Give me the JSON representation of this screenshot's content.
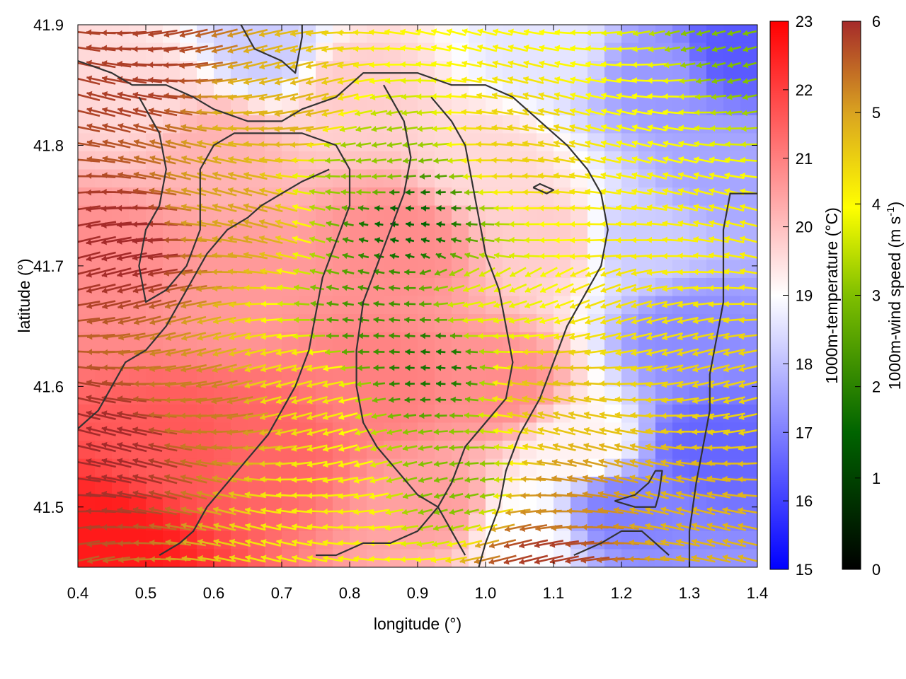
{
  "chart_data": {
    "type": "heatmap",
    "subtype": "temperature field with wind vectors and contour lines",
    "xlabel": "longitude (°)",
    "ylabel": "latitude (°)",
    "xlim": [
      0.4,
      1.4
    ],
    "ylim": [
      41.45,
      41.9
    ],
    "x_ticks": [
      "0.4",
      "0.5",
      "0.6",
      "0.7",
      "0.8",
      "0.9",
      "1.0",
      "1.1",
      "1.2",
      "1.3",
      "1.4"
    ],
    "y_ticks": [
      "41.5",
      "41.6",
      "41.7",
      "41.8",
      "41.9"
    ],
    "grid": false,
    "temperature_colorbar": {
      "label": "1000m-temperature (°C)",
      "range": [
        15,
        23
      ],
      "ticks": [
        "15",
        "16",
        "17",
        "18",
        "19",
        "20",
        "21",
        "22",
        "23"
      ],
      "colors": [
        "#0000ff",
        "#ffffff",
        "#ff0000"
      ]
    },
    "wind_colorbar": {
      "label": "1000m-wind speed (m s",
      "label_superscript": "-1",
      "label_close": ")",
      "range": [
        0,
        6
      ],
      "ticks": [
        "0",
        "1",
        "2",
        "3",
        "4",
        "5",
        "6"
      ],
      "colors": [
        "#000000",
        "#006400",
        "#7fbf00",
        "#ffff00",
        "#daa520",
        "#a52a2a"
      ]
    },
    "temperature_anchors": [
      {
        "lon": 0.45,
        "lat": 41.47,
        "t": 22.6
      },
      {
        "lon": 0.55,
        "lat": 41.55,
        "t": 21.6
      },
      {
        "lon": 0.68,
        "lat": 41.55,
        "t": 21.4
      },
      {
        "lon": 0.62,
        "lat": 41.68,
        "t": 20.6
      },
      {
        "lon": 0.6,
        "lat": 41.8,
        "t": 20.2
      },
      {
        "lon": 0.45,
        "lat": 41.7,
        "t": 20.8
      },
      {
        "lon": 0.5,
        "lat": 41.84,
        "t": 19.6
      },
      {
        "lon": 0.68,
        "lat": 41.88,
        "t": 18.2
      },
      {
        "lon": 0.88,
        "lat": 41.72,
        "t": 20.8
      },
      {
        "lon": 0.85,
        "lat": 41.6,
        "t": 21.0
      },
      {
        "lon": 0.93,
        "lat": 41.5,
        "t": 20.5
      },
      {
        "lon": 0.8,
        "lat": 41.85,
        "t": 19.8
      },
      {
        "lon": 1.02,
        "lat": 41.6,
        "t": 20.8
      },
      {
        "lon": 1.0,
        "lat": 41.78,
        "t": 19.6
      },
      {
        "lon": 1.1,
        "lat": 41.72,
        "t": 19.8
      },
      {
        "lon": 1.1,
        "lat": 41.88,
        "t": 18.6
      },
      {
        "lon": 1.14,
        "lat": 41.55,
        "t": 19.2
      },
      {
        "lon": 1.22,
        "lat": 41.72,
        "t": 18.2
      },
      {
        "lon": 1.25,
        "lat": 41.86,
        "t": 17.4
      },
      {
        "lon": 1.2,
        "lat": 41.5,
        "t": 17.0
      },
      {
        "lon": 1.33,
        "lat": 41.55,
        "t": 16.6
      },
      {
        "lon": 1.3,
        "lat": 41.64,
        "t": 17.2
      },
      {
        "lon": 1.35,
        "lat": 41.78,
        "t": 17.6
      },
      {
        "lon": 1.37,
        "lat": 41.88,
        "t": 16.4
      },
      {
        "lon": 1.05,
        "lat": 41.48,
        "t": 19.0
      }
    ],
    "wind_speed_anchors": [
      {
        "lon": 0.45,
        "lat": 41.55,
        "s": 6.0
      },
      {
        "lon": 0.48,
        "lat": 41.72,
        "s": 6.0
      },
      {
        "lon": 0.48,
        "lat": 41.86,
        "s": 5.8
      },
      {
        "lon": 0.6,
        "lat": 41.58,
        "s": 5.2
      },
      {
        "lon": 0.62,
        "lat": 41.74,
        "s": 4.8
      },
      {
        "lon": 0.7,
        "lat": 41.82,
        "s": 4.6
      },
      {
        "lon": 0.72,
        "lat": 41.6,
        "s": 4.0
      },
      {
        "lon": 0.78,
        "lat": 41.5,
        "s": 3.8
      },
      {
        "lon": 0.84,
        "lat": 41.65,
        "s": 1.8
      },
      {
        "lon": 0.88,
        "lat": 41.74,
        "s": 1.2
      },
      {
        "lon": 0.92,
        "lat": 41.62,
        "s": 1.4
      },
      {
        "lon": 0.95,
        "lat": 41.52,
        "s": 2.4
      },
      {
        "lon": 0.82,
        "lat": 41.78,
        "s": 2.6
      },
      {
        "lon": 1.02,
        "lat": 41.66,
        "s": 3.4
      },
      {
        "lon": 1.06,
        "lat": 41.8,
        "s": 4.2
      },
      {
        "lon": 1.1,
        "lat": 41.6,
        "s": 4.4
      },
      {
        "lon": 1.12,
        "lat": 41.5,
        "s": 5.0
      },
      {
        "lon": 1.2,
        "lat": 41.66,
        "s": 4.0
      },
      {
        "lon": 1.22,
        "lat": 41.84,
        "s": 3.6
      },
      {
        "lon": 1.3,
        "lat": 41.72,
        "s": 3.8
      },
      {
        "lon": 1.35,
        "lat": 41.6,
        "s": 4.2
      },
      {
        "lon": 1.36,
        "lat": 41.88,
        "s": 2.4
      },
      {
        "lon": 1.3,
        "lat": 41.5,
        "s": 4.6
      },
      {
        "lon": 1.1,
        "lat": 41.46,
        "s": 5.8
      }
    ],
    "wind_direction": "predominantly westward, converging toward a low-speed core near 0.9°, 41.7°",
    "contour_lines": [
      [
        [
          0.64,
          41.9
        ],
        [
          0.66,
          41.88
        ],
        [
          0.7,
          41.87
        ],
        [
          0.72,
          41.86
        ],
        [
          0.73,
          41.89
        ],
        [
          0.73,
          41.9
        ]
      ],
      [
        [
          0.4,
          41.87
        ],
        [
          0.45,
          41.86
        ],
        [
          0.48,
          41.85
        ],
        [
          0.53,
          41.85
        ],
        [
          0.57,
          41.84
        ],
        [
          0.6,
          41.83
        ],
        [
          0.65,
          41.82
        ],
        [
          0.7,
          41.82
        ],
        [
          0.73,
          41.83
        ],
        [
          0.78,
          41.84
        ],
        [
          0.82,
          41.86
        ],
        [
          0.86,
          41.86
        ],
        [
          0.9,
          41.86
        ],
        [
          0.95,
          41.85
        ],
        [
          1.0,
          41.85
        ],
        [
          1.04,
          41.84
        ],
        [
          1.08,
          41.82
        ],
        [
          1.12,
          41.8
        ],
        [
          1.15,
          41.78
        ],
        [
          1.17,
          41.76
        ],
        [
          1.18,
          41.73
        ],
        [
          1.17,
          41.7
        ],
        [
          1.15,
          41.68
        ],
        [
          1.12,
          41.65
        ],
        [
          1.1,
          41.62
        ],
        [
          1.08,
          41.59
        ],
        [
          1.05,
          41.56
        ],
        [
          1.03,
          41.53
        ],
        [
          1.02,
          41.5
        ],
        [
          1.0,
          41.47
        ],
        [
          0.99,
          41.45
        ]
      ],
      [
        [
          0.49,
          41.84
        ],
        [
          0.52,
          41.81
        ],
        [
          0.53,
          41.78
        ],
        [
          0.52,
          41.75
        ],
        [
          0.5,
          41.73
        ],
        [
          0.49,
          41.7
        ],
        [
          0.5,
          41.67
        ],
        [
          0.53,
          41.68
        ],
        [
          0.56,
          41.7
        ],
        [
          0.58,
          41.73
        ],
        [
          0.58,
          41.78
        ],
        [
          0.6,
          41.8
        ],
        [
          0.63,
          41.81
        ],
        [
          0.68,
          41.81
        ],
        [
          0.73,
          41.81
        ],
        [
          0.78,
          41.8
        ],
        [
          0.8,
          41.78
        ],
        [
          0.8,
          41.75
        ],
        [
          0.78,
          41.72
        ],
        [
          0.76,
          41.69
        ],
        [
          0.75,
          41.66
        ],
        [
          0.74,
          41.63
        ],
        [
          0.72,
          41.6
        ],
        [
          0.7,
          41.58
        ],
        [
          0.68,
          41.56
        ],
        [
          0.65,
          41.54
        ],
        [
          0.62,
          41.52
        ],
        [
          0.59,
          41.5
        ],
        [
          0.57,
          41.48
        ],
        [
          0.55,
          41.47
        ],
        [
          0.52,
          41.46
        ]
      ],
      [
        [
          0.4,
          41.565
        ],
        [
          0.43,
          41.58
        ],
        [
          0.45,
          41.6
        ],
        [
          0.47,
          41.62
        ],
        [
          0.5,
          41.63
        ],
        [
          0.53,
          41.65
        ],
        [
          0.56,
          41.68
        ],
        [
          0.59,
          41.71
        ],
        [
          0.62,
          41.73
        ],
        [
          0.65,
          41.74
        ],
        [
          0.67,
          41.75
        ],
        [
          0.7,
          41.76
        ],
        [
          0.73,
          41.77
        ],
        [
          0.77,
          41.78
        ]
      ],
      [
        [
          0.85,
          41.85
        ],
        [
          0.88,
          41.82
        ],
        [
          0.89,
          41.79
        ],
        [
          0.88,
          41.76
        ],
        [
          0.86,
          41.73
        ],
        [
          0.84,
          41.7
        ],
        [
          0.82,
          41.67
        ],
        [
          0.81,
          41.63
        ],
        [
          0.81,
          41.6
        ],
        [
          0.82,
          41.57
        ],
        [
          0.84,
          41.55
        ],
        [
          0.87,
          41.53
        ],
        [
          0.9,
          41.51
        ],
        [
          0.93,
          41.5
        ],
        [
          0.95,
          41.48
        ],
        [
          0.97,
          41.46
        ]
      ],
      [
        [
          0.92,
          41.84
        ],
        [
          0.95,
          41.82
        ],
        [
          0.97,
          41.8
        ],
        [
          0.98,
          41.77
        ],
        [
          0.99,
          41.74
        ],
        [
          1.0,
          41.71
        ],
        [
          1.02,
          41.68
        ],
        [
          1.03,
          41.65
        ],
        [
          1.04,
          41.62
        ],
        [
          1.03,
          41.59
        ],
        [
          1.0,
          41.57
        ],
        [
          0.97,
          41.55
        ],
        [
          0.95,
          41.52
        ],
        [
          0.93,
          41.5
        ],
        [
          0.9,
          41.48
        ],
        [
          0.86,
          41.47
        ],
        [
          0.82,
          41.47
        ],
        [
          0.78,
          41.46
        ],
        [
          0.75,
          41.46
        ]
      ],
      [
        [
          1.13,
          41.46
        ],
        [
          1.17,
          41.47
        ],
        [
          1.2,
          41.48
        ],
        [
          1.23,
          41.48
        ],
        [
          1.25,
          41.47
        ],
        [
          1.27,
          41.46
        ]
      ],
      [
        [
          1.19,
          41.505
        ],
        [
          1.22,
          41.51
        ],
        [
          1.24,
          41.52
        ],
        [
          1.25,
          41.53
        ],
        [
          1.26,
          41.53
        ],
        [
          1.255,
          41.51
        ],
        [
          1.25,
          41.5
        ],
        [
          1.22,
          41.5
        ],
        [
          1.19,
          41.505
        ]
      ],
      [
        [
          1.3,
          41.45
        ],
        [
          1.3,
          41.48
        ],
        [
          1.31,
          41.52
        ],
        [
          1.32,
          41.55
        ],
        [
          1.33,
          41.58
        ],
        [
          1.33,
          41.61
        ],
        [
          1.34,
          41.64
        ],
        [
          1.35,
          41.67
        ],
        [
          1.35,
          41.7
        ],
        [
          1.35,
          41.73
        ],
        [
          1.36,
          41.76
        ],
        [
          1.38,
          41.76
        ],
        [
          1.4,
          41.76
        ]
      ],
      [
        [
          1.07,
          41.765
        ],
        [
          1.09,
          41.76
        ],
        [
          1.1,
          41.763
        ],
        [
          1.08,
          41.768
        ],
        [
          1.07,
          41.765
        ]
      ]
    ]
  }
}
